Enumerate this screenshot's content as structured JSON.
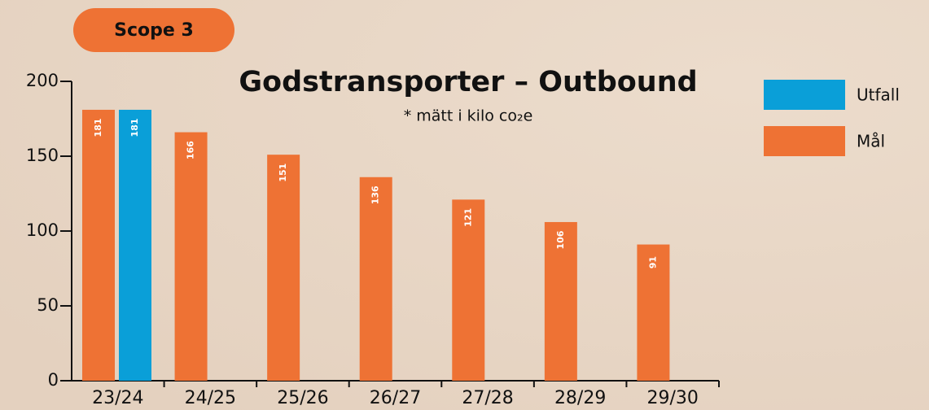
{
  "chart_data": {
    "type": "bar",
    "badge": "Scope 3",
    "title": "Godstransporter – Outbound",
    "subtitle": "* mätt i kilo co₂e",
    "categories": [
      "23/24",
      "24/25",
      "25/26",
      "26/27",
      "27/28",
      "28/29",
      "29/30"
    ],
    "series": [
      {
        "name": "Utfall",
        "color": "#0a9fd8",
        "values": [
          181,
          null,
          null,
          null,
          null,
          null,
          null
        ]
      },
      {
        "name": "Mål",
        "color": "#ee7234",
        "values": [
          181,
          166,
          151,
          136,
          121,
          106,
          91
        ]
      }
    ],
    "ylim": [
      0,
      200
    ],
    "yticks": [
      0,
      50,
      100,
      150,
      200
    ],
    "legend": "right"
  }
}
